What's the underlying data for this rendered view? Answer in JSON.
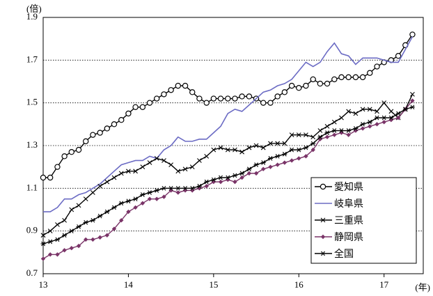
{
  "chart_data": {
    "type": "line",
    "y_unit_label": "(倍)",
    "x_unit_label": "(年)",
    "x": [
      13,
      13.083,
      13.167,
      13.25,
      13.333,
      13.417,
      13.5,
      13.583,
      13.667,
      13.75,
      13.833,
      13.917,
      14,
      14.083,
      14.167,
      14.25,
      14.333,
      14.417,
      14.5,
      14.583,
      14.667,
      14.75,
      14.833,
      14.917,
      15,
      15.083,
      15.167,
      15.25,
      15.333,
      15.417,
      15.5,
      15.583,
      15.667,
      15.75,
      15.833,
      15.917,
      16,
      16.083,
      16.167,
      16.25,
      16.333,
      16.417,
      16.5,
      16.583,
      16.667,
      16.75,
      16.833,
      16.917,
      17,
      17.083,
      17.167,
      17.25,
      17.333
    ],
    "xlim": [
      13,
      17.46
    ],
    "xticks": [
      13,
      14,
      15,
      16,
      17
    ],
    "ylim": [
      0.7,
      1.9
    ],
    "yticks": [
      0.7,
      0.9,
      1.1,
      1.3,
      1.5,
      1.7,
      1.9
    ],
    "grid": true,
    "legend": "lower right",
    "series": [
      {
        "name": "愛知県",
        "color": "#000000",
        "marker": "circle",
        "values": [
          1.15,
          1.15,
          1.2,
          1.25,
          1.27,
          1.28,
          1.32,
          1.35,
          1.36,
          1.38,
          1.4,
          1.42,
          1.45,
          1.48,
          1.48,
          1.5,
          1.52,
          1.54,
          1.56,
          1.58,
          1.58,
          1.55,
          1.52,
          1.5,
          1.52,
          1.52,
          1.52,
          1.52,
          1.53,
          1.53,
          1.52,
          1.5,
          1.5,
          1.53,
          1.55,
          1.58,
          1.57,
          1.58,
          1.61,
          1.59,
          1.59,
          1.61,
          1.62,
          1.62,
          1.62,
          1.62,
          1.64,
          1.67,
          1.69,
          1.7,
          1.72,
          1.77,
          1.82
        ]
      },
      {
        "name": "岐阜県",
        "color": "#6b6bc4",
        "marker": "none",
        "values": [
          0.99,
          0.99,
          1.01,
          1.05,
          1.05,
          1.07,
          1.08,
          1.1,
          1.12,
          1.15,
          1.18,
          1.21,
          1.22,
          1.23,
          1.23,
          1.25,
          1.24,
          1.28,
          1.3,
          1.34,
          1.32,
          1.32,
          1.33,
          1.33,
          1.36,
          1.39,
          1.45,
          1.47,
          1.46,
          1.49,
          1.52,
          1.55,
          1.56,
          1.58,
          1.59,
          1.61,
          1.65,
          1.69,
          1.67,
          1.69,
          1.74,
          1.78,
          1.73,
          1.72,
          1.68,
          1.71,
          1.71,
          1.71,
          1.7,
          1.69,
          1.69,
          1.75,
          1.81
        ]
      },
      {
        "name": "三重県",
        "color": "#000000",
        "marker": "x",
        "values": [
          0.88,
          0.9,
          0.93,
          0.95,
          1.0,
          1.02,
          1.05,
          1.08,
          1.11,
          1.13,
          1.15,
          1.17,
          1.18,
          1.18,
          1.2,
          1.22,
          1.24,
          1.23,
          1.21,
          1.18,
          1.19,
          1.2,
          1.23,
          1.25,
          1.28,
          1.29,
          1.28,
          1.28,
          1.27,
          1.29,
          1.3,
          1.29,
          1.31,
          1.31,
          1.31,
          1.35,
          1.35,
          1.35,
          1.34,
          1.37,
          1.39,
          1.41,
          1.43,
          1.46,
          1.45,
          1.47,
          1.47,
          1.46,
          1.5,
          1.46,
          1.43,
          1.47,
          1.54
        ]
      },
      {
        "name": "静岡県",
        "color": "#7a3468",
        "marker": "diamond",
        "values": [
          0.77,
          0.79,
          0.79,
          0.81,
          0.82,
          0.83,
          0.86,
          0.86,
          0.87,
          0.88,
          0.91,
          0.95,
          0.99,
          1.01,
          1.03,
          1.05,
          1.05,
          1.06,
          1.09,
          1.08,
          1.09,
          1.09,
          1.1,
          1.11,
          1.13,
          1.13,
          1.14,
          1.13,
          1.15,
          1.17,
          1.17,
          1.19,
          1.2,
          1.21,
          1.22,
          1.23,
          1.24,
          1.25,
          1.28,
          1.33,
          1.34,
          1.35,
          1.36,
          1.35,
          1.37,
          1.38,
          1.39,
          1.4,
          1.41,
          1.42,
          1.43,
          1.47,
          1.51
        ]
      },
      {
        "name": "全国",
        "color": "#000000",
        "marker": "asterisk",
        "values": [
          0.84,
          0.85,
          0.86,
          0.88,
          0.9,
          0.92,
          0.94,
          0.95,
          0.97,
          0.99,
          1.01,
          1.03,
          1.04,
          1.05,
          1.07,
          1.08,
          1.09,
          1.1,
          1.1,
          1.1,
          1.1,
          1.1,
          1.11,
          1.13,
          1.14,
          1.15,
          1.15,
          1.16,
          1.17,
          1.19,
          1.21,
          1.22,
          1.24,
          1.25,
          1.26,
          1.28,
          1.28,
          1.29,
          1.31,
          1.34,
          1.36,
          1.37,
          1.37,
          1.37,
          1.38,
          1.4,
          1.41,
          1.43,
          1.43,
          1.43,
          1.45,
          1.47,
          1.48
        ]
      }
    ]
  }
}
